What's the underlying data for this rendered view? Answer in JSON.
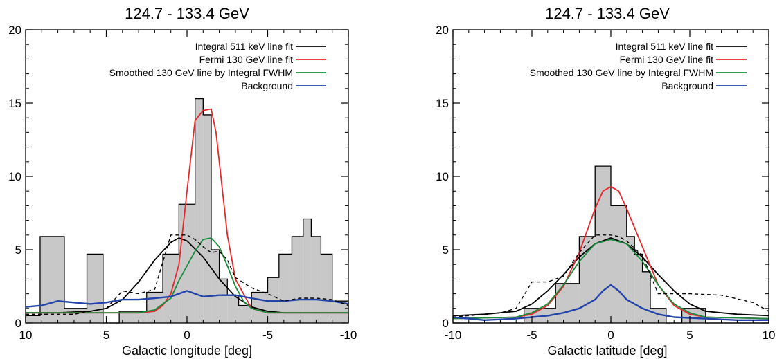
{
  "chart_data": [
    {
      "type": "line",
      "title": "124.7 - 133.4 GeV",
      "xlabel": "Galactic longitude [deg]",
      "ylabel": "",
      "xlim": [
        10,
        -10
      ],
      "ylim": [
        0,
        20
      ],
      "x_reversed": true,
      "xticks": [
        "10",
        "5",
        "0",
        "-5",
        "-10"
      ],
      "yticks": [
        "0",
        "5",
        "10",
        "15",
        "20"
      ],
      "legend_position": "top-right",
      "histogram": {
        "edges": [
          10,
          9.1,
          7.6,
          6.2,
          5.2,
          4.2,
          2.5,
          1.5,
          0.5,
          -0.5,
          -1.0,
          -1.5,
          -2.0,
          -2.5,
          -3.2,
          -4.0,
          -5.0,
          -5.7,
          -6.5,
          -7.2,
          -7.7,
          -8.3,
          -9.0,
          -10
        ],
        "counts": [
          0.5,
          5.9,
          1.0,
          4.7,
          0,
          0.8,
          2.1,
          4.7,
          8.1,
          15.3,
          14.2,
          5.0,
          3.0,
          1.9,
          1.2,
          2.1,
          3.1,
          4.7,
          5.9,
          7.1,
          5.9,
          4.7,
          1.5
        ]
      },
      "series": [
        {
          "name": "Integral 511 keV line fit",
          "color": "#000000",
          "style": "solid",
          "x": [
            10,
            8,
            6,
            5,
            4,
            3,
            2,
            1,
            0.5,
            0,
            -1,
            -2,
            -3,
            -4,
            -5,
            -6,
            -8,
            -10
          ],
          "y": [
            0.7,
            0.7,
            0.8,
            1.0,
            1.6,
            2.8,
            4.3,
            5.5,
            5.8,
            5.6,
            4.5,
            3.0,
            1.8,
            1.1,
            0.8,
            0.7,
            0.7,
            0.7
          ]
        },
        {
          "name": "Fermi 130 GeV line fit",
          "color": "#e8262b",
          "style": "solid",
          "x": [
            10,
            5,
            3,
            2,
            1.5,
            1.0,
            0.5,
            0,
            -0.5,
            -1.0,
            -1.5,
            -1.8,
            -2.0,
            -2.5,
            -3.0,
            -4.0,
            -5,
            -10
          ],
          "y": [
            0.7,
            0.7,
            0.7,
            0.8,
            1.2,
            2.0,
            4.0,
            9.0,
            13.8,
            14.5,
            14.6,
            13.0,
            11.0,
            6.0,
            3.0,
            1.0,
            0.7,
            0.7
          ]
        },
        {
          "name": "Smoothed 130 GeV line by Integral FWHM",
          "color": "#1a8a3c",
          "style": "solid",
          "x": [
            10,
            5,
            3,
            2,
            1.0,
            0.5,
            0,
            -0.5,
            -1.0,
            -1.5,
            -2.0,
            -2.5,
            -3.0,
            -3.5,
            -4.0,
            -5,
            -10
          ],
          "y": [
            0.7,
            0.7,
            0.7,
            0.9,
            1.7,
            2.9,
            3.9,
            4.9,
            5.7,
            5.8,
            5.2,
            3.9,
            2.5,
            1.5,
            1.0,
            0.7,
            0.7
          ]
        },
        {
          "name": "Background",
          "color": "#2244aa",
          "style": "solid",
          "x": [
            10,
            9,
            8,
            7,
            6,
            5,
            4,
            3,
            2,
            1,
            0,
            -1,
            -2,
            -3,
            -4,
            -5,
            -6,
            -7,
            -8,
            -9,
            -10
          ],
          "y": [
            1.1,
            1.2,
            1.5,
            1.4,
            1.3,
            1.4,
            1.6,
            1.6,
            1.7,
            1.8,
            2.2,
            1.8,
            1.9,
            1.9,
            1.7,
            1.5,
            1.5,
            1.6,
            1.6,
            1.5,
            1.3
          ]
        },
        {
          "name": "",
          "color": "#000000",
          "style": "dashed",
          "x": [
            10,
            7,
            5,
            4,
            3,
            2,
            1,
            0,
            -0.5,
            -1,
            -1.5,
            -2,
            -2.5,
            -3,
            -4,
            -5,
            -6,
            -7,
            -8,
            -9,
            -10
          ],
          "y": [
            0.6,
            0.6,
            1.0,
            2.2,
            2.0,
            2.3,
            6.0,
            6.0,
            5.7,
            5.2,
            4.8,
            4.9,
            4.3,
            3.1,
            2.4,
            2.0,
            1.5,
            1.7,
            1.7,
            1.6,
            1.2
          ]
        }
      ]
    },
    {
      "type": "line",
      "title": "124.7 - 133.4 GeV",
      "xlabel": "Galactic latitude [deg]",
      "ylabel": "",
      "xlim": [
        -10,
        10
      ],
      "ylim": [
        0,
        20
      ],
      "x_reversed": false,
      "xticks": [
        "-10",
        "-5",
        "0",
        "5",
        "10"
      ],
      "yticks": [
        "0",
        "5",
        "10",
        "15",
        "20"
      ],
      "legend_position": "top-right",
      "histogram": {
        "edges": [
          -10,
          -5.5,
          -3.5,
          -2.0,
          -1.0,
          0.0,
          1.0,
          1.5,
          2.0,
          2.5,
          3.5,
          4.5,
          6.0,
          10
        ],
        "counts": [
          0,
          1.0,
          2.7,
          5.9,
          10.7,
          8.0,
          5.9,
          4.7,
          3.5,
          1.0,
          0,
          1.0,
          0
        ]
      },
      "series": [
        {
          "name": "Integral 511 keV line fit",
          "color": "#000000",
          "style": "solid",
          "x": [
            -10,
            -8,
            -6,
            -5,
            -4,
            -3,
            -2,
            -1,
            0,
            1,
            2,
            3,
            4,
            5,
            6,
            8,
            10
          ],
          "y": [
            0.5,
            0.6,
            0.8,
            1.3,
            2.2,
            3.3,
            4.5,
            5.4,
            5.8,
            5.4,
            4.5,
            3.3,
            2.2,
            1.3,
            0.8,
            0.6,
            0.5
          ]
        },
        {
          "name": "Fermi 130 GeV line fit",
          "color": "#e8262b",
          "style": "solid",
          "x": [
            -10,
            -6,
            -5,
            -4,
            -3,
            -2,
            -1,
            -0.5,
            0,
            0.5,
            1,
            2,
            3,
            4,
            5,
            6,
            10
          ],
          "y": [
            0.3,
            0.4,
            0.6,
            1.2,
            2.5,
            4.8,
            7.8,
            9.0,
            9.3,
            9.0,
            7.8,
            5.2,
            2.6,
            1.2,
            0.6,
            0.4,
            0.3
          ]
        },
        {
          "name": "Smoothed 130 GeV line by Integral FWHM",
          "color": "#1a8a3c",
          "style": "solid",
          "x": [
            -10,
            -6,
            -5,
            -4,
            -3,
            -2,
            -1,
            0,
            1,
            2,
            3,
            4,
            5,
            6,
            10
          ],
          "y": [
            0.3,
            0.4,
            0.7,
            1.3,
            2.6,
            4.2,
            5.4,
            5.7,
            5.4,
            4.2,
            2.6,
            1.3,
            0.7,
            0.4,
            0.3
          ]
        },
        {
          "name": "Background",
          "color": "#2244aa",
          "style": "solid",
          "x": [
            -10,
            -8,
            -6,
            -5,
            -4,
            -3,
            -2,
            -1,
            -0.5,
            0,
            0.5,
            1,
            2,
            3,
            4,
            6,
            8,
            10
          ],
          "y": [
            0.4,
            0.2,
            0.3,
            0.4,
            0.5,
            0.7,
            1.0,
            1.6,
            2.2,
            2.6,
            2.2,
            1.6,
            1.0,
            0.6,
            0.4,
            0.3,
            0.2,
            0.2
          ]
        },
        {
          "name": "",
          "color": "#000000",
          "style": "dashed",
          "x": [
            -10,
            -7,
            -6,
            -5,
            -4,
            -3,
            -2,
            -1,
            -0.5,
            0,
            0.5,
            1,
            2,
            3,
            4,
            5,
            7,
            9,
            10
          ],
          "y": [
            0.4,
            0.7,
            1.0,
            2.8,
            2.8,
            3.2,
            4.8,
            6.0,
            6.0,
            6.0,
            5.9,
            5.6,
            4.6,
            2.0,
            2.0,
            2.0,
            1.9,
            1.4,
            0.8
          ]
        }
      ]
    }
  ]
}
